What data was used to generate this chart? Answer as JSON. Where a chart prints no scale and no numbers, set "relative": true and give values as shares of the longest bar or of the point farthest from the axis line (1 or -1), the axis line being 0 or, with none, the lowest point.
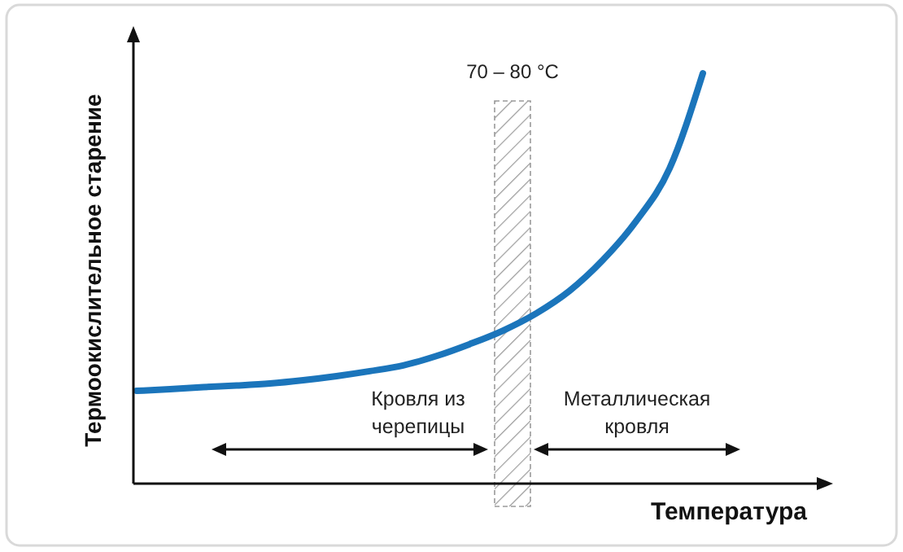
{
  "chart_data": {
    "type": "line",
    "relative": true,
    "xlabel": "Температура",
    "ylabel": "Термоокислительное старение",
    "categories": [
      null,
      null,
      null,
      null,
      null,
      null,
      null,
      null,
      null,
      null,
      null,
      null,
      null,
      null,
      null,
      null,
      null,
      null
    ],
    "series": [
      {
        "color": "#1b75bb",
        "values": [
          0.226,
          0.23,
          0.235,
          0.239,
          0.244,
          0.252,
          0.262,
          0.274,
          0.288,
          0.311,
          0.34,
          0.373,
          0.415,
          0.47,
          0.545,
          0.64,
          0.768,
          1.0
        ]
      }
    ],
    "annotations": [
      "70 – 80 °C",
      "Кровля из черепицы",
      "Металлическая кровля"
    ],
    "marker": "none",
    "line_style": "solid"
  }
}
